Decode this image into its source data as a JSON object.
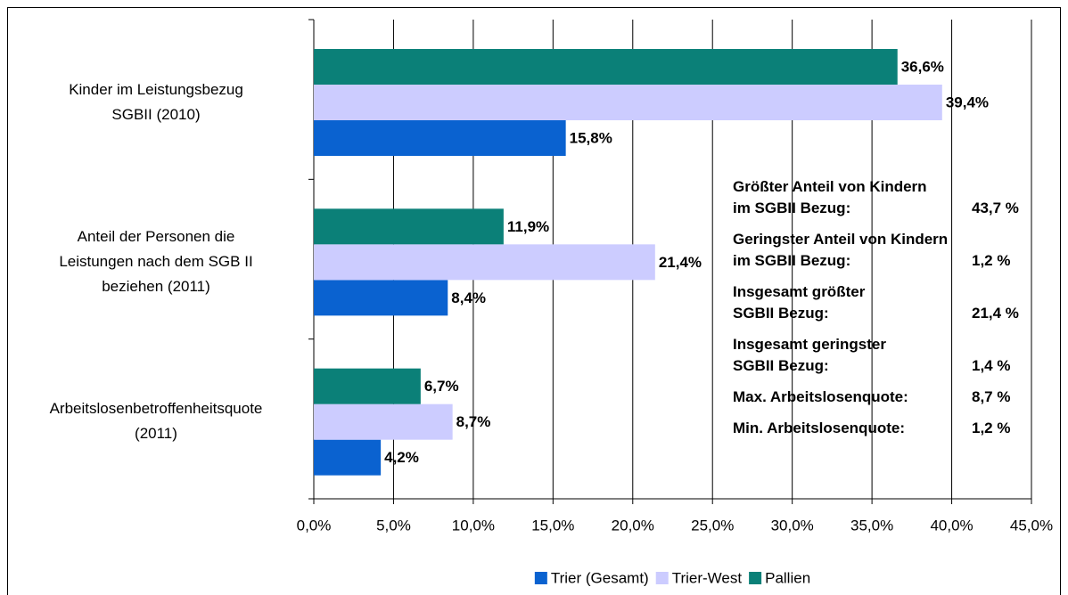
{
  "chart_data": {
    "type": "bar",
    "orientation": "horizontal",
    "categories": [
      "Kinder im Leistungsbezug\nSGBII (2010)",
      "Anteil der Personen die\nLeistungen nach dem SGB II\nbeziehen (2011)",
      "Arbeitslosenbetroffenheitsquote\n(2011)"
    ],
    "series": [
      {
        "name": "Trier (Gesamt)",
        "color": "#0a62d0",
        "values": [
          15.8,
          8.4,
          4.2
        ],
        "value_labels": [
          "15,8%",
          "8,4%",
          "4,2%"
        ]
      },
      {
        "name": "Trier-West",
        "color": "#ccccff",
        "values": [
          39.4,
          21.4,
          8.7
        ],
        "value_labels": [
          "39,4%",
          "21,4%",
          "8,7%"
        ]
      },
      {
        "name": "Pallien",
        "color": "#0b8078",
        "values": [
          36.6,
          11.9,
          6.7
        ],
        "value_labels": [
          "36,6%",
          "11,9%",
          "6,7%"
        ]
      }
    ],
    "xlim": [
      0,
      45
    ],
    "xticks": [
      {
        "value": 0,
        "label": "0,0%"
      },
      {
        "value": 5,
        "label": "5,0%"
      },
      {
        "value": 10,
        "label": "10,0%"
      },
      {
        "value": 15,
        "label": "15,0%"
      },
      {
        "value": 20,
        "label": "20,0%"
      },
      {
        "value": 25,
        "label": "25,0%"
      },
      {
        "value": 30,
        "label": "30,0%"
      },
      {
        "value": 35,
        "label": "35,0%"
      },
      {
        "value": 40,
        "label": "40,0%"
      },
      {
        "value": 45,
        "label": "45,0%"
      }
    ],
    "grid": true,
    "legend": "bottom",
    "annotations": [
      {
        "text": "Größter Anteil von Kindern\nim SGBII Bezug:",
        "value": "43,7 %"
      },
      {
        "text": "Geringster Anteil von Kindern\nim SGBII Bezug:",
        "value": "1,2 %"
      },
      {
        "text": "Insgesamt größter\nSGBII Bezug:",
        "value": "21,4 %"
      },
      {
        "text": "Insgesamt geringster\nSGBII Bezug:",
        "value": "1,4 %"
      },
      {
        "text": "Max. Arbeitslosenquote:",
        "value": "8,7 %"
      },
      {
        "text": "Min. Arbeitslosenquote:",
        "value": "1,2 %"
      }
    ]
  }
}
